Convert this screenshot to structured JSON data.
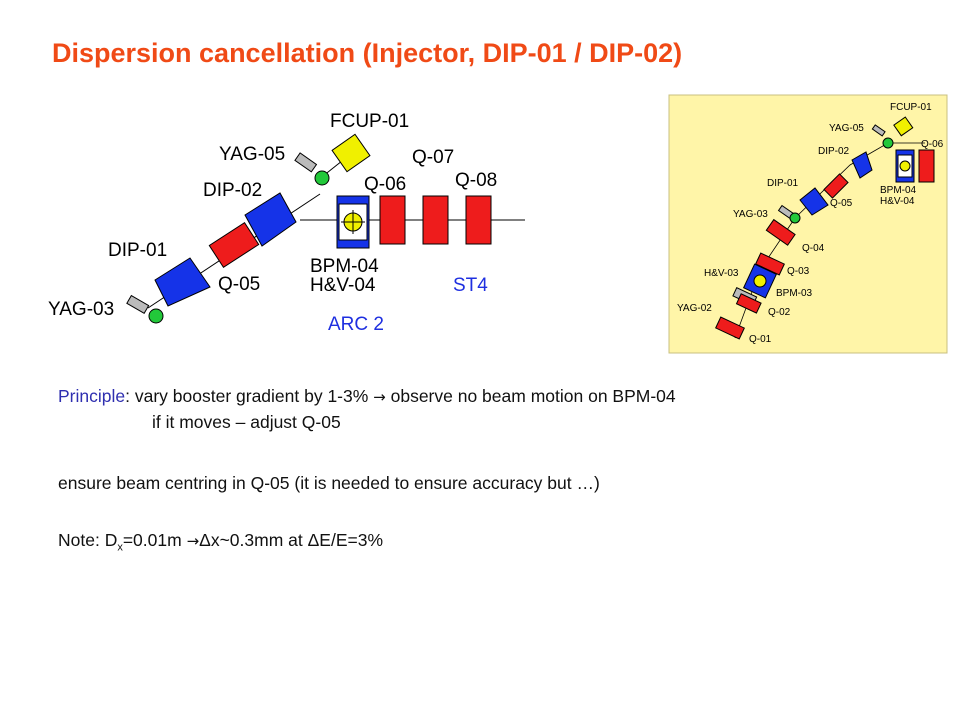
{
  "title": "Dispersion cancellation (Injector, DIP-01 / DIP-02)",
  "diagram": {
    "labels": {
      "fcup01": "FCUP-01",
      "yag05": "YAG-05",
      "q07": "Q-07",
      "q06": "Q-06",
      "q08": "Q-08",
      "dip02": "DIP-02",
      "dip01": "DIP-01",
      "bpm04": "BPM-04",
      "hv04": "H&V-04",
      "q05": "Q-05",
      "st4": "ST4",
      "yag03": "YAG-03",
      "arc2": "ARC 2"
    }
  },
  "inset": {
    "labels": {
      "fcup01": "FCUP-01",
      "yag05": "YAG-05",
      "q06": "Q-06",
      "dip02": "DIP-02",
      "bpm04": "BPM-04",
      "hv04": "H&V-04",
      "dip01": "DIP-01",
      "q05": "Q-05",
      "yag03": "YAG-03",
      "q04": "Q-04",
      "hv03": "H&V-03",
      "q03": "Q-03",
      "bpm03": "BPM-03",
      "yag02": "YAG-02",
      "q02": "Q-02",
      "q01": "Q-01"
    },
    "background": "#fff5a8"
  },
  "text": {
    "principle_label": "Principle",
    "principle_rest_a": ": vary booster gradient by 1-3% ",
    "arrow": "→",
    "principle_rest_b": " observe no beam motion on BPM-04",
    "principle_line2": "if it moves – adjust Q-05",
    "centring": "ensure beam centring in Q-05 (it is needed to ensure accuracy but …)",
    "note_a": "Note: D",
    "note_sub": "x",
    "note_b": "=0.01m ",
    "note_c": "Δx~0.3mm at ΔE/E=3%"
  },
  "colors": {
    "title": "#f04a16",
    "quad": "#ee1c1c",
    "dipole": "#1533e8",
    "yag": "#22c83a",
    "fcup": "#f0f000",
    "blue_label": "#1e2fe0"
  }
}
